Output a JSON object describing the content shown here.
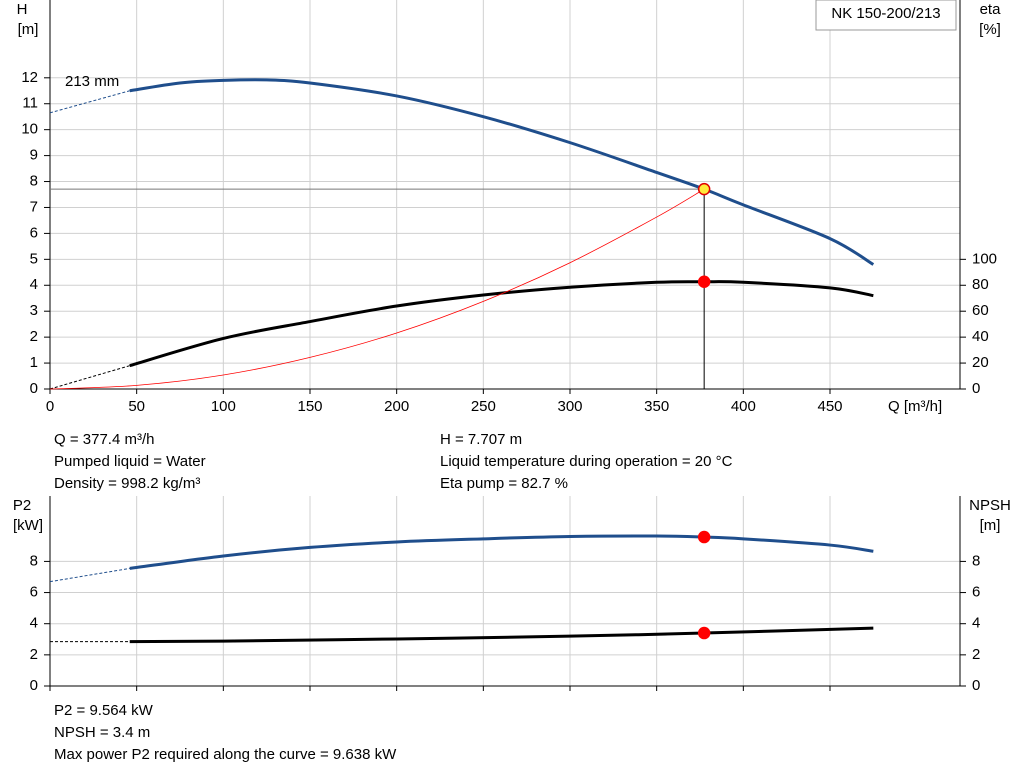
{
  "chart_data": [
    {
      "type": "line",
      "ylabel": "H",
      "ylabel_unit": "[m]",
      "y2label": "eta",
      "y2label_unit": "[%]",
      "xlabel": "Q [m³/h]",
      "legend_box": "NK 150-200/213",
      "annotation": "213 mm",
      "xlim": [
        0,
        525
      ],
      "xticks": [
        0,
        50,
        100,
        150,
        200,
        250,
        300,
        350,
        400,
        450
      ],
      "show_xtick_labels": true,
      "ylim": [
        0,
        15
      ],
      "yticks": [
        0,
        1,
        2,
        3,
        4,
        5,
        6,
        7,
        8,
        9,
        10,
        11,
        12
      ],
      "y2lim": [
        0,
        300
      ],
      "y2ticks": [
        0,
        20,
        40,
        60,
        80,
        100
      ],
      "grid": true,
      "series": [
        {
          "color": "#1f4e8c",
          "line_width": 3,
          "dashed": false,
          "x": [
            46,
            75,
            100,
            125,
            150,
            200,
            250,
            300,
            350,
            377.4,
            400,
            450,
            475
          ],
          "values": [
            11.5,
            11.8,
            11.9,
            11.92,
            11.8,
            11.3,
            10.5,
            9.5,
            8.35,
            7.707,
            7.1,
            5.8,
            4.8
          ]
        },
        {
          "color": "#1f4e8c",
          "line_width": 1,
          "dashed": true,
          "x": [
            0,
            46
          ],
          "values": [
            10.65,
            11.5
          ]
        },
        {
          "color": "#000000",
          "line_width": 3,
          "dashed": false,
          "axis": "y2",
          "x": [
            46,
            100,
            150,
            200,
            250,
            300,
            350,
            377.4,
            400,
            450,
            475
          ],
          "values": [
            18,
            39,
            52,
            64,
            72.5,
            78.5,
            82.3,
            82.7,
            82.3,
            78,
            72
          ]
        },
        {
          "color": "#000000",
          "line_width": 1,
          "dashed": true,
          "axis": "y2",
          "x": [
            0,
            46
          ],
          "values": [
            0,
            18
          ]
        },
        {
          "color": "#ff0000",
          "line_width": 0.8,
          "dashed": false,
          "x": [
            0,
            50,
            100,
            150,
            200,
            250,
            300,
            350,
            377.4
          ],
          "values": [
            0,
            0.14,
            0.54,
            1.22,
            2.16,
            3.38,
            4.87,
            6.63,
            7.707
          ]
        }
      ],
      "points": [
        {
          "x": 377.4,
          "y": 7.707,
          "axis": "y",
          "color": "#ffeb3b",
          "stroke": "#e00000",
          "drop_lines": true
        },
        {
          "x": 377.4,
          "y": 82.7,
          "axis": "y2",
          "color": "#ff0000",
          "stroke": "#ff0000",
          "drop_lines": false
        }
      ],
      "notes": [
        [
          "Q = 377.4 m³/h",
          "Pumped liquid = Water",
          "Density = 998.2 kg/m³"
        ],
        [
          "H = 7.707 m",
          "Liquid temperature during operation = 20 °C",
          "Eta pump = 82.7 %"
        ]
      ]
    },
    {
      "type": "line",
      "ylabel": "P2",
      "ylabel_unit": "[kW]",
      "y2label": "NPSH",
      "y2label_unit": "[m]",
      "xlim": [
        0,
        525
      ],
      "xticks": [
        0,
        50,
        100,
        150,
        200,
        250,
        300,
        350,
        400,
        450
      ],
      "show_xtick_labels": false,
      "ylim": [
        0,
        12.2
      ],
      "yticks": [
        0,
        2,
        4,
        6,
        8
      ],
      "y2lim": [
        0,
        12.2
      ],
      "y2ticks": [
        0,
        2,
        4,
        6,
        8
      ],
      "grid": true,
      "series": [
        {
          "color": "#1f4e8c",
          "line_width": 3,
          "dashed": false,
          "x": [
            46,
            100,
            150,
            200,
            250,
            300,
            350,
            377.4,
            400,
            450,
            475
          ],
          "values": [
            7.55,
            8.35,
            8.9,
            9.25,
            9.45,
            9.6,
            9.63,
            9.564,
            9.45,
            9.05,
            8.65
          ]
        },
        {
          "color": "#1f4e8c",
          "line_width": 1,
          "dashed": true,
          "x": [
            0,
            46
          ],
          "values": [
            6.7,
            7.55
          ]
        },
        {
          "color": "#000000",
          "line_width": 3,
          "dashed": false,
          "axis": "y2",
          "x": [
            46,
            100,
            200,
            300,
            377.4,
            475
          ],
          "values": [
            2.85,
            2.88,
            3.02,
            3.2,
            3.4,
            3.72
          ]
        },
        {
          "color": "#000000",
          "line_width": 1,
          "dashed": true,
          "axis": "y2",
          "x": [
            0,
            46
          ],
          "values": [
            2.85,
            2.85
          ]
        }
      ],
      "points": [
        {
          "x": 377.4,
          "y": 9.564,
          "axis": "y",
          "color": "#ff0000",
          "stroke": "#ff0000",
          "drop_lines": false
        },
        {
          "x": 377.4,
          "y": 3.4,
          "axis": "y2",
          "color": "#ff0000",
          "stroke": "#ff0000",
          "drop_lines": false
        }
      ],
      "notes": [
        [
          "P2 = 9.564 kW",
          "NPSH = 3.4 m",
          "Max power P2 required along the curve = 9.638 kW"
        ]
      ]
    }
  ]
}
